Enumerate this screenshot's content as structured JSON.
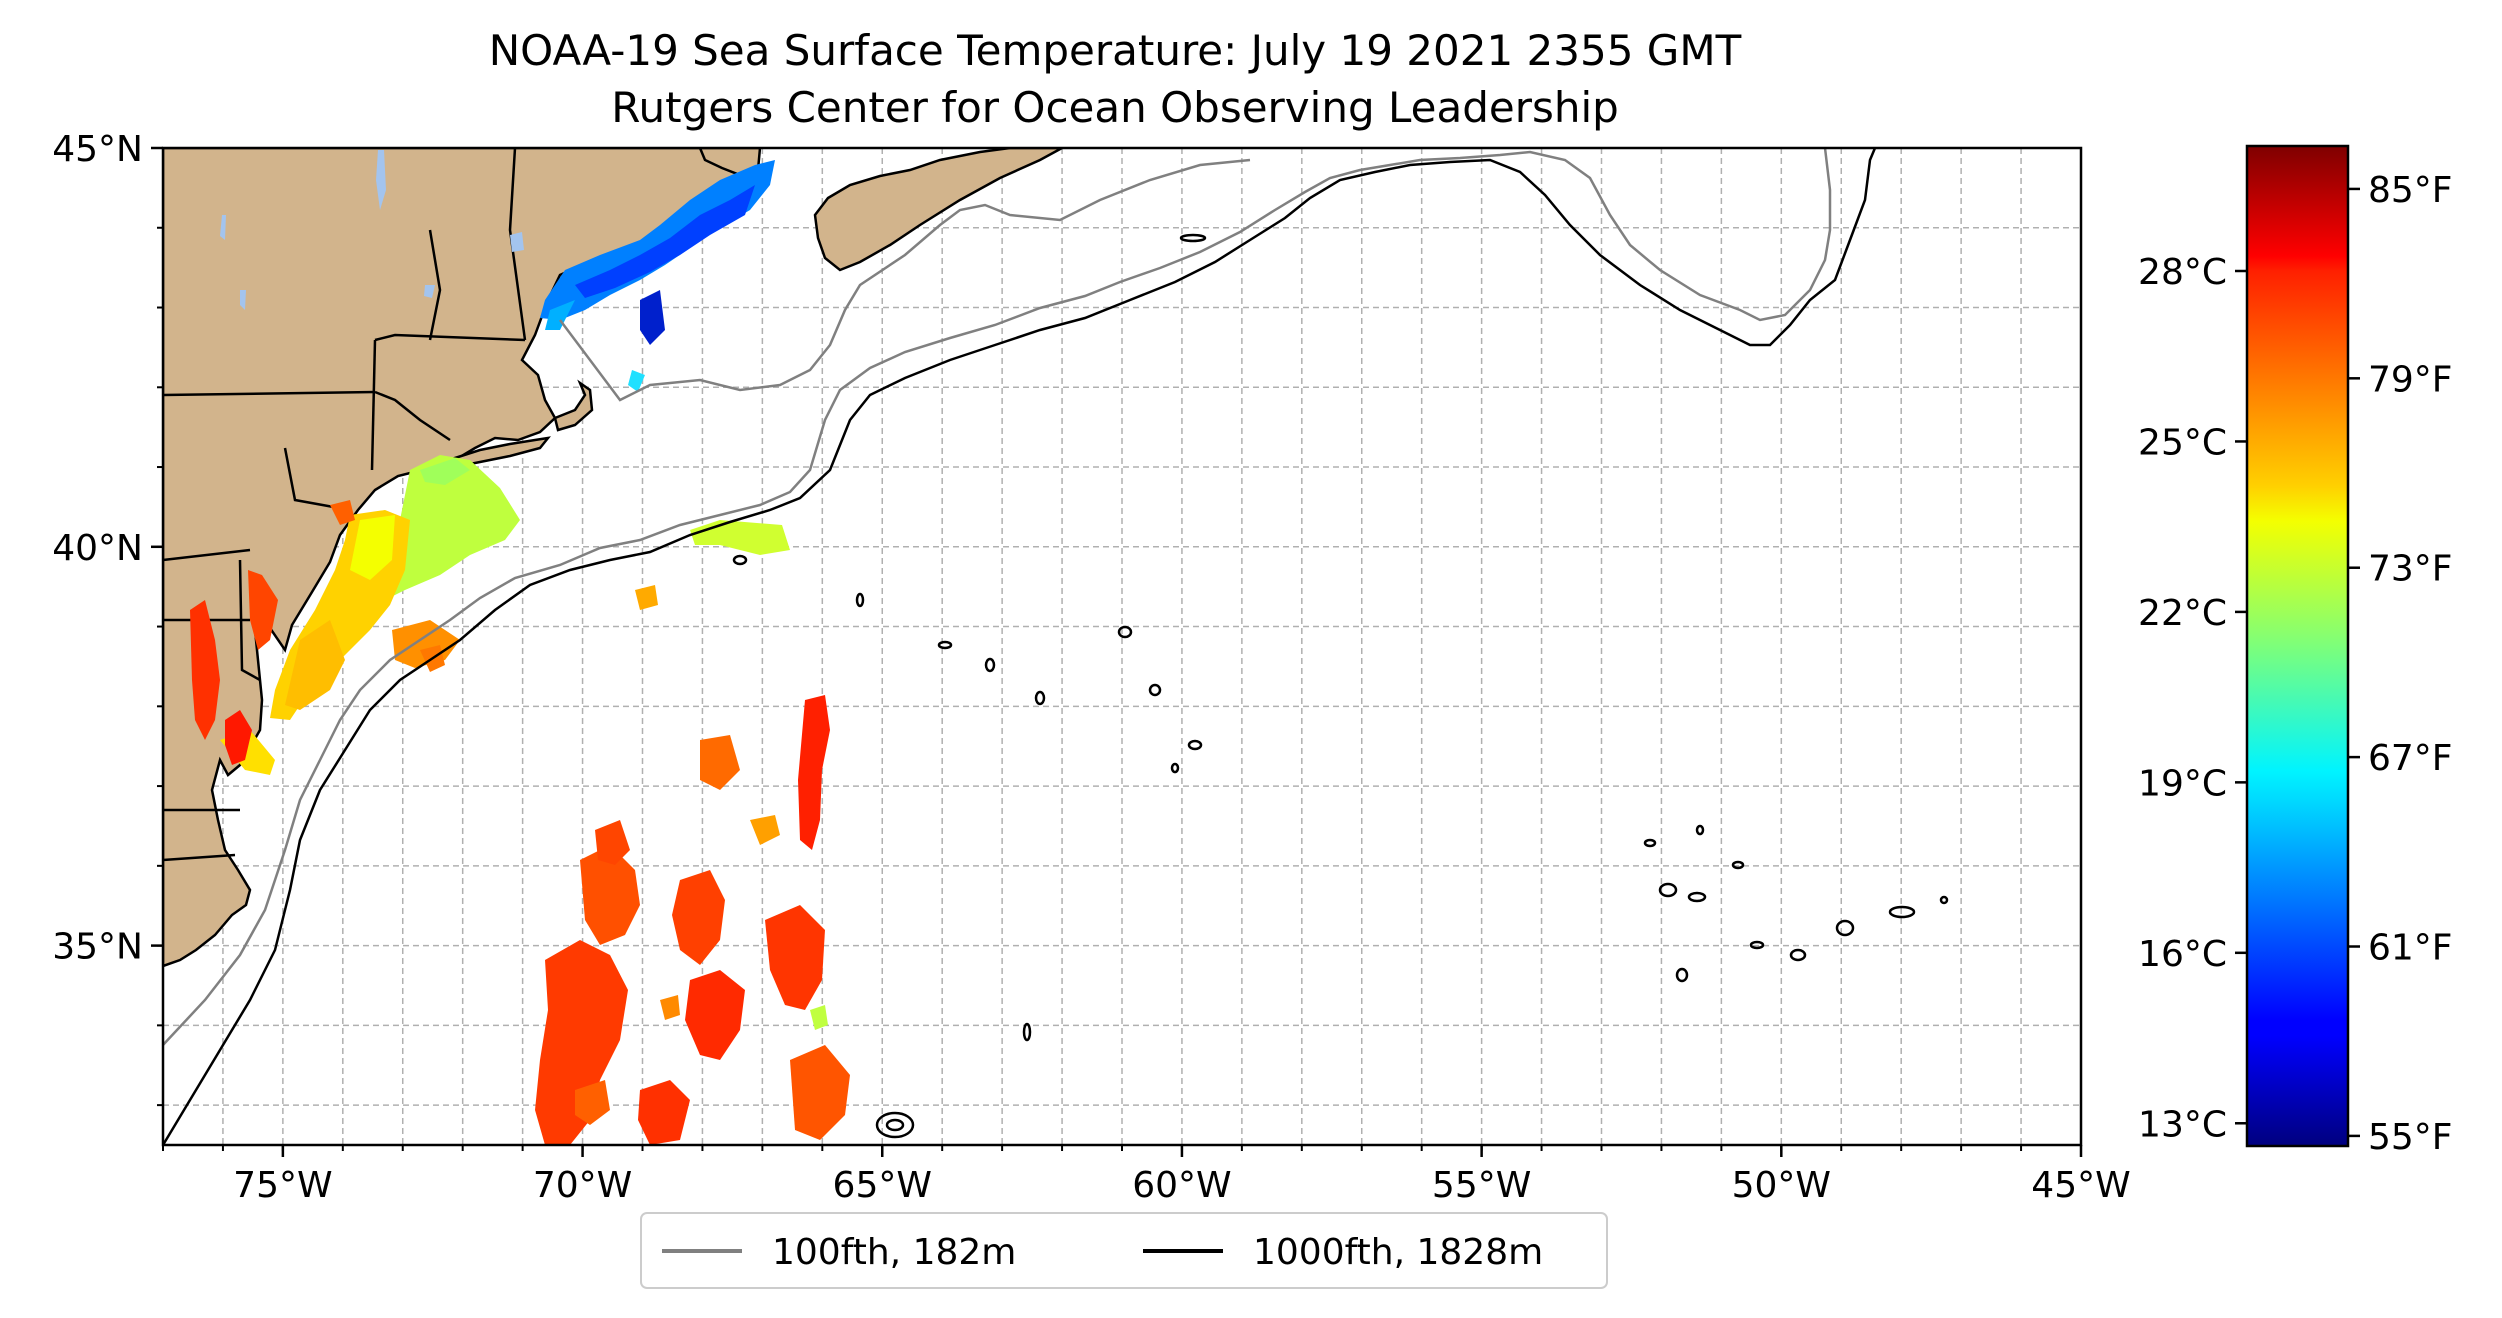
{
  "title_line1": "NOAA-19 Sea Surface Temperature: July 19 2021 2355 GMT",
  "title_line2": "Rutgers Center for Ocean Observing Leadership",
  "map": {
    "lon_range": [
      -77,
      -45
    ],
    "lat_range": [
      32.5,
      45
    ],
    "lon_ticks": [
      {
        "value": -75,
        "label": "75°W"
      },
      {
        "value": -70,
        "label": "70°W"
      },
      {
        "value": -65,
        "label": "65°W"
      },
      {
        "value": -60,
        "label": "60°W"
      },
      {
        "value": -55,
        "label": "55°W"
      },
      {
        "value": -50,
        "label": "50°W"
      },
      {
        "value": -45,
        "label": "45°W"
      }
    ],
    "lat_ticks": [
      {
        "value": 45,
        "label": "45°N"
      },
      {
        "value": 40,
        "label": "40°N"
      },
      {
        "value": 35,
        "label": "35°N"
      }
    ],
    "grid": true,
    "land_color": "#d2b48c",
    "lake_color": "#a3c4ee"
  },
  "legend": {
    "placement": "bottom-center",
    "items": [
      {
        "label": "100fth, 182m",
        "color": "#808080"
      },
      {
        "label": "1000fth, 1828m",
        "color": "#000000"
      }
    ]
  },
  "colorbar": {
    "colormap": "jet",
    "range_c": [
      12.6,
      30.2
    ],
    "celsius_ticks": [
      {
        "value": 28,
        "label": "28°C"
      },
      {
        "value": 25,
        "label": "25°C"
      },
      {
        "value": 22,
        "label": "22°C"
      },
      {
        "value": 19,
        "label": "19°C"
      },
      {
        "value": 16,
        "label": "16°C"
      },
      {
        "value": 13,
        "label": "13°C"
      }
    ],
    "fahrenheit_ticks": [
      {
        "value": 85,
        "label": "85°F"
      },
      {
        "value": 79,
        "label": "79°F"
      },
      {
        "value": 73,
        "label": "73°F"
      },
      {
        "value": 67,
        "label": "67°F"
      },
      {
        "value": 61,
        "label": "61°F"
      },
      {
        "value": 55,
        "label": "55°F"
      }
    ]
  }
}
